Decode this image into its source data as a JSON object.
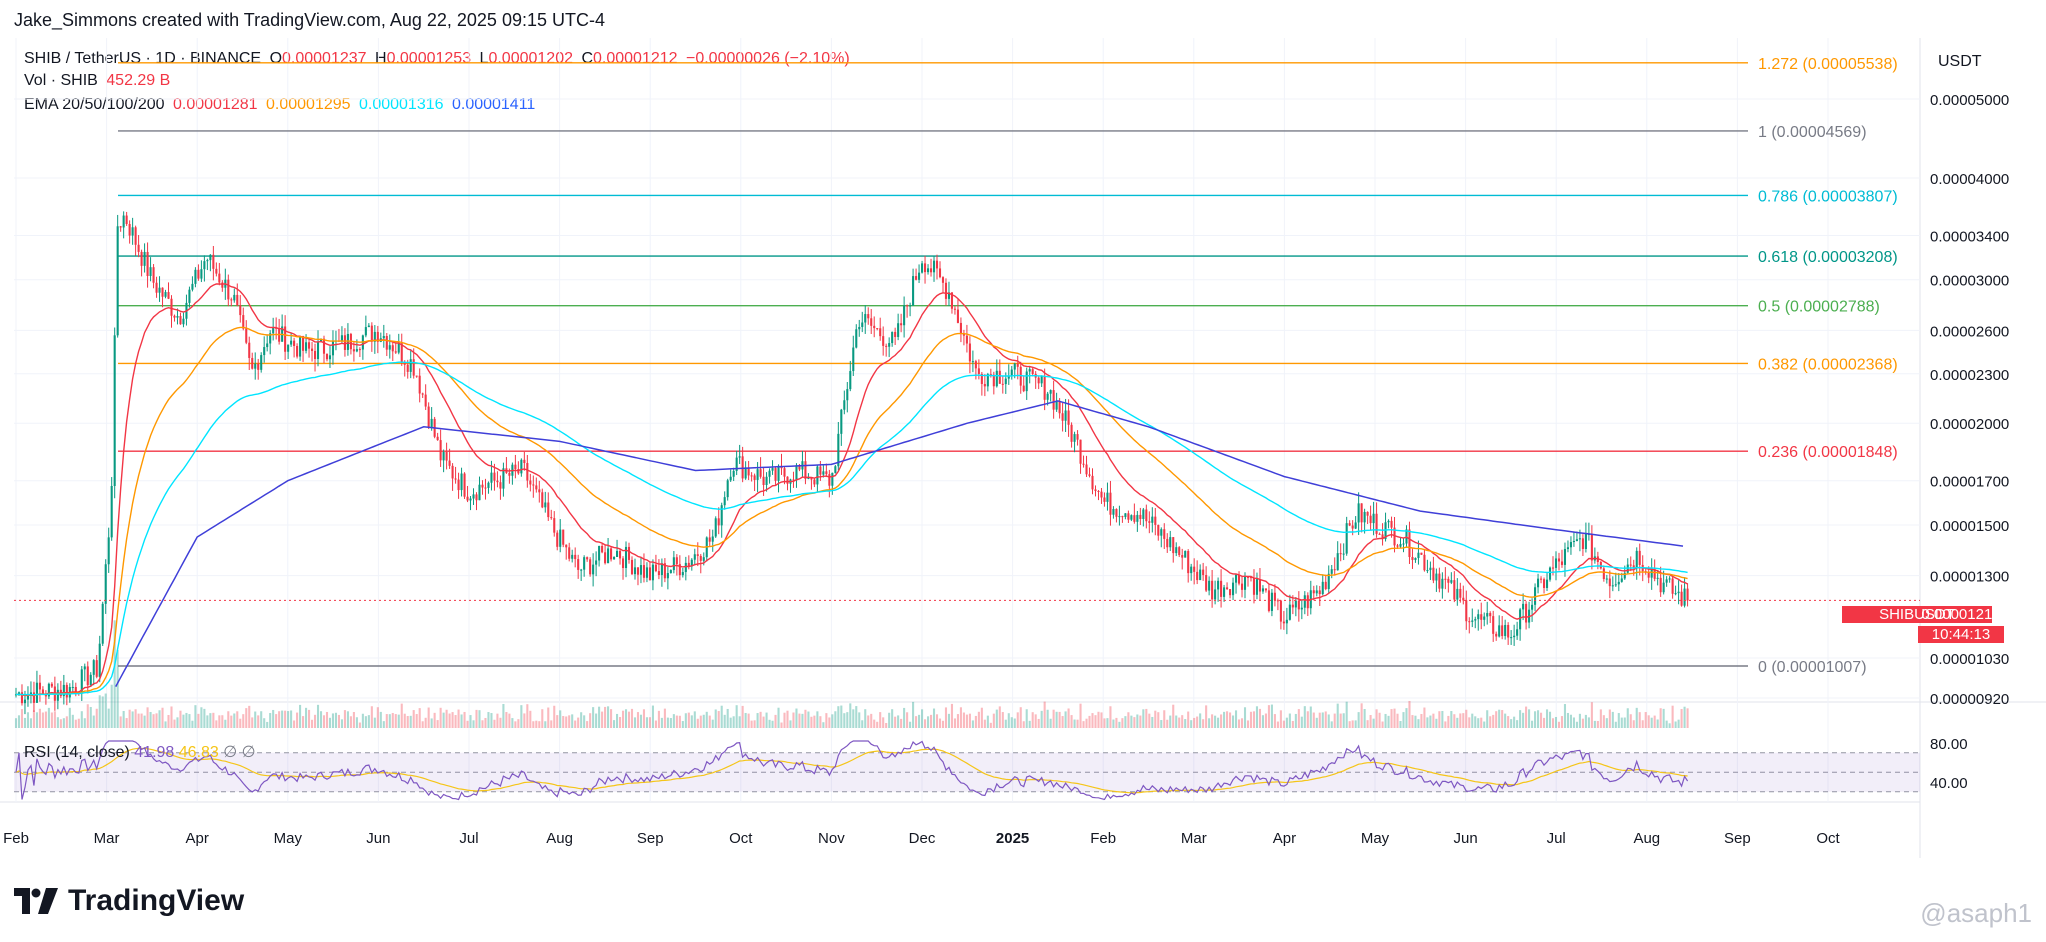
{
  "header": {
    "text": "Jake_Simmons created with TradingView.com, Aug 22, 2025 09:15 UTC-4"
  },
  "legend": {
    "symbol": "SHIB / TetherUS · 1D · BINANCE",
    "o_label": "O",
    "o_value": "0.00001237",
    "h_label": "H",
    "h_value": "0.00001253",
    "l_label": "L",
    "l_value": "0.00001202",
    "c_label": "C",
    "c_value": "0.00001212",
    "change": "−0.00000026 (−2.10%)",
    "vol_label": "Vol · SHIB",
    "vol_value": "452.29 B",
    "ema_label": "EMA 20/50/100/200",
    "ema20": "0.00001281",
    "ema50": "0.00001295",
    "ema100": "0.00001316",
    "ema200": "0.00001411"
  },
  "rsi_legend": {
    "label": "RSI (14, close)",
    "value1": "41.98",
    "value2": "46.83",
    "icon1": "∅",
    "icon2": "∅"
  },
  "axis": {
    "currency": "USDT"
  },
  "price_tag": {
    "symbol": "SHIBUSDT",
    "price": "0.00001212",
    "countdown": "10:44:13"
  },
  "footer": {
    "brand": "TradingView",
    "watermark": "@asaph1"
  },
  "colors": {
    "up": "#089981",
    "down": "#f23645",
    "ema20": "#f23645",
    "ema50": "#ff9800",
    "ema100": "#00e5ff",
    "ema200": "#3f3fd8",
    "rsi": "#7e57c2",
    "rsi_ma": "#f5c518"
  },
  "chart_data": {
    "type": "candlestick",
    "price_axis_ticks": [
      "0.00005000",
      "0.00004000",
      "0.00003400",
      "0.00003000",
      "0.00002600",
      "0.00002300",
      "0.00002000",
      "0.00001700",
      "0.00001500",
      "0.00001300",
      "0.00001030",
      "0.00000920"
    ],
    "rsi_axis_ticks": [
      "80.00",
      "40.00"
    ],
    "x_ticks": [
      "Feb",
      "Mar",
      "Apr",
      "May",
      "Jun",
      "Jul",
      "Aug",
      "Sep",
      "Oct",
      "Nov",
      "Dec",
      "2025",
      "Feb",
      "Mar",
      "Apr",
      "May",
      "Jun",
      "Jul",
      "Aug",
      "Sep",
      "Oct"
    ],
    "fib_levels": [
      {
        "label": "1.272 (0.00005538)",
        "price": 5.538e-05,
        "color": "#ff9800"
      },
      {
        "label": "1 (0.00004569)",
        "price": 4.569e-05,
        "color": "#787b86"
      },
      {
        "label": "0.786 (0.00003807)",
        "price": 3.807e-05,
        "color": "#00bcd4"
      },
      {
        "label": "0.618 (0.00003208)",
        "price": 3.208e-05,
        "color": "#009688"
      },
      {
        "label": "0.5 (0.00002788)",
        "price": 2.788e-05,
        "color": "#4caf50"
      },
      {
        "label": "0.382 (0.00002368)",
        "price": 2.368e-05,
        "color": "#ff9800"
      },
      {
        "label": "0.236 (0.00001848)",
        "price": 1.848e-05,
        "color": "#f23645"
      },
      {
        "label": "0 (0.00001007)",
        "price": 1.007e-05,
        "color": "#787b86"
      }
    ],
    "rsi_levels": [
      70,
      50,
      30
    ],
    "close_keypoints": [
      {
        "month": 0.0,
        "price": 9.3e-06
      },
      {
        "month": 0.6,
        "price": 9.45e-06
      },
      {
        "month": 0.9,
        "price": 1e-05
      },
      {
        "month": 1.05,
        "price": 1.6e-05
      },
      {
        "month": 1.12,
        "price": 3.5e-05
      },
      {
        "month": 1.2,
        "price": 3.6e-05
      },
      {
        "month": 1.5,
        "price": 3e-05
      },
      {
        "month": 1.8,
        "price": 2.7e-05
      },
      {
        "month": 2.1,
        "price": 3.2e-05
      },
      {
        "month": 2.4,
        "price": 2.85e-05
      },
      {
        "month": 2.6,
        "price": 2.3e-05
      },
      {
        "month": 2.8,
        "price": 2.6e-05
      },
      {
        "month": 3.2,
        "price": 2.45e-05
      },
      {
        "month": 3.6,
        "price": 2.5e-05
      },
      {
        "month": 4.0,
        "price": 2.6e-05
      },
      {
        "month": 4.4,
        "price": 2.35e-05
      },
      {
        "month": 4.7,
        "price": 1.8e-05
      },
      {
        "month": 5.0,
        "price": 1.65e-05
      },
      {
        "month": 5.3,
        "price": 1.7e-05
      },
      {
        "month": 5.6,
        "price": 1.75e-05
      },
      {
        "month": 5.9,
        "price": 1.5e-05
      },
      {
        "month": 6.2,
        "price": 1.32e-05
      },
      {
        "month": 6.6,
        "price": 1.4e-05
      },
      {
        "month": 7.0,
        "price": 1.3e-05
      },
      {
        "month": 7.4,
        "price": 1.35e-05
      },
      {
        "month": 7.7,
        "price": 1.45e-05
      },
      {
        "month": 7.9,
        "price": 1.8e-05
      },
      {
        "month": 8.3,
        "price": 1.7e-05
      },
      {
        "month": 8.6,
        "price": 1.75e-05
      },
      {
        "month": 9.0,
        "price": 1.7e-05
      },
      {
        "month": 9.3,
        "price": 2.7e-05
      },
      {
        "month": 9.7,
        "price": 2.5e-05
      },
      {
        "month": 10.0,
        "price": 3.2e-05
      },
      {
        "month": 10.3,
        "price": 2.9e-05
      },
      {
        "month": 10.6,
        "price": 2.3e-05
      },
      {
        "month": 11.0,
        "price": 2.3e-05
      },
      {
        "month": 11.4,
        "price": 2.2e-05
      },
      {
        "month": 11.7,
        "price": 1.9e-05
      },
      {
        "month": 12.0,
        "price": 1.6e-05
      },
      {
        "month": 12.4,
        "price": 1.55e-05
      },
      {
        "month": 12.8,
        "price": 1.4e-05
      },
      {
        "month": 13.2,
        "price": 1.25e-05
      },
      {
        "month": 13.6,
        "price": 1.3e-05
      },
      {
        "month": 14.0,
        "price": 1.15e-05
      },
      {
        "month": 14.4,
        "price": 1.25e-05
      },
      {
        "month": 14.8,
        "price": 1.55e-05
      },
      {
        "month": 15.3,
        "price": 1.45e-05
      },
      {
        "month": 15.7,
        "price": 1.3e-05
      },
      {
        "month": 16.1,
        "price": 1.15e-05
      },
      {
        "month": 16.5,
        "price": 1.1e-05
      },
      {
        "month": 16.9,
        "price": 1.3e-05
      },
      {
        "month": 17.3,
        "price": 1.45e-05
      },
      {
        "month": 17.6,
        "price": 1.28e-05
      },
      {
        "month": 17.9,
        "price": 1.38e-05
      },
      {
        "month": 18.2,
        "price": 1.26e-05
      },
      {
        "month": 18.45,
        "price": 1.212e-05
      }
    ],
    "ema200_keypoints": [
      {
        "month": 1.1,
        "price": 9.5e-06
      },
      {
        "month": 2.0,
        "price": 1.45e-05
      },
      {
        "month": 3.0,
        "price": 1.7e-05
      },
      {
        "month": 4.5,
        "price": 1.98e-05
      },
      {
        "month": 6.0,
        "price": 1.9e-05
      },
      {
        "month": 7.5,
        "price": 1.75e-05
      },
      {
        "month": 9.0,
        "price": 1.78e-05
      },
      {
        "month": 10.5,
        "price": 2e-05
      },
      {
        "month": 11.5,
        "price": 2.13e-05
      },
      {
        "month": 12.5,
        "price": 1.98e-05
      },
      {
        "month": 14.0,
        "price": 1.72e-05
      },
      {
        "month": 15.5,
        "price": 1.56e-05
      },
      {
        "month": 17.0,
        "price": 1.48e-05
      },
      {
        "month": 18.45,
        "price": 1.411e-05
      }
    ]
  }
}
